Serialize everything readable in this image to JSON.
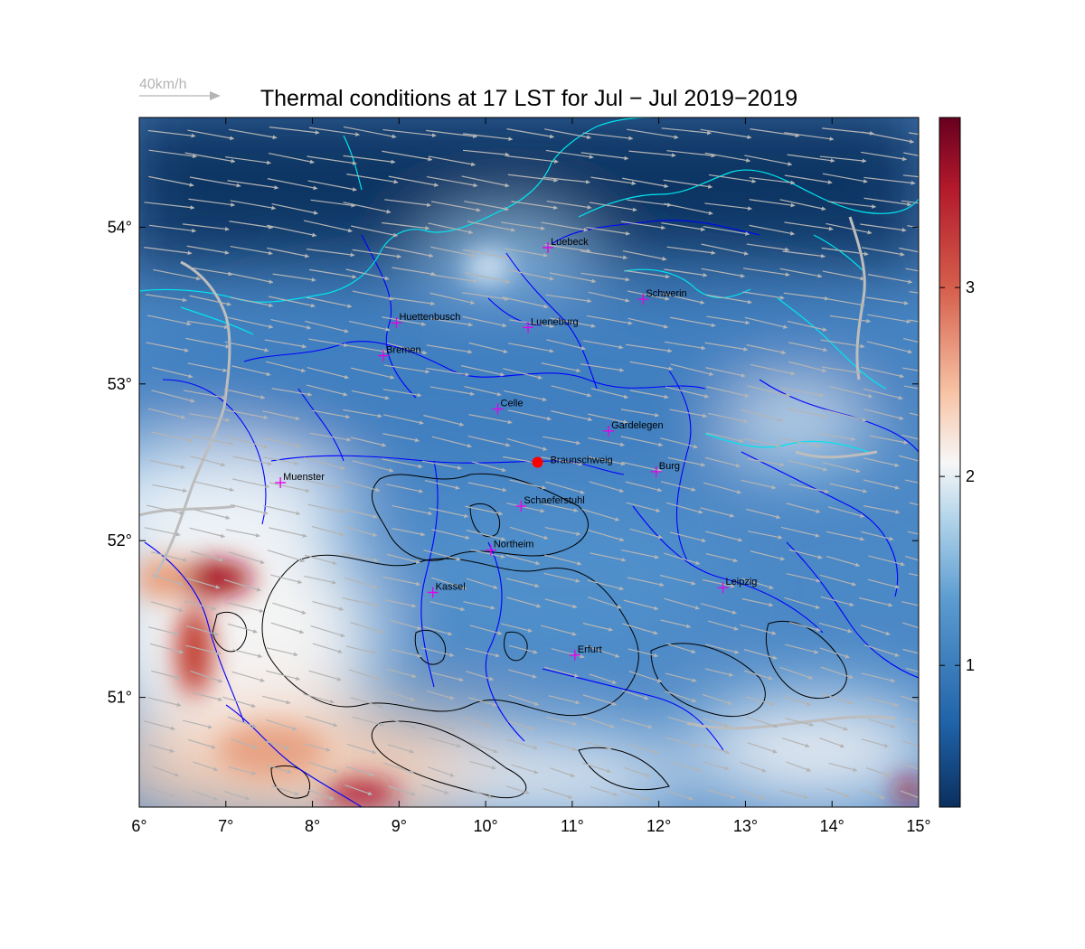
{
  "title": "Thermal conditions at 17 LST for Jul − Jul  2019−2019",
  "wind_reference": {
    "label": "40km/h",
    "color": "#b4b4b4"
  },
  "map": {
    "lon_range": [
      6,
      15
    ],
    "lat_range": [
      50.3,
      54.7
    ],
    "x_ticks": [
      {
        "value": 6,
        "label": "6°"
      },
      {
        "value": 7,
        "label": "7°"
      },
      {
        "value": 8,
        "label": "8°"
      },
      {
        "value": 9,
        "label": "9°"
      },
      {
        "value": 10,
        "label": "10°"
      },
      {
        "value": 11,
        "label": "11°"
      },
      {
        "value": 12,
        "label": "12°"
      },
      {
        "value": 13,
        "label": "13°"
      },
      {
        "value": 14,
        "label": "14°"
      },
      {
        "value": 15,
        "label": "15°"
      }
    ],
    "y_ticks": [
      {
        "value": 51,
        "label": "51°"
      },
      {
        "value": 52,
        "label": "52°"
      },
      {
        "value": 53,
        "label": "53°"
      },
      {
        "value": 54,
        "label": "54°"
      }
    ],
    "colorbar": {
      "range": [
        0.25,
        3.9
      ],
      "ticks": [
        {
          "value": 1,
          "label": "1"
        },
        {
          "value": 2,
          "label": "2"
        },
        {
          "value": 3,
          "label": "3"
        }
      ],
      "colors": [
        "#0b2f5e",
        "#1f62a8",
        "#5b9bd0",
        "#b4d5ea",
        "#f7f7f7",
        "#f7c4a6",
        "#d6604d",
        "#b2182b",
        "#67001f"
      ]
    },
    "cities": [
      {
        "name": "Luebeck",
        "lon": 10.72,
        "lat": 53.87
      },
      {
        "name": "Schwerin",
        "lon": 11.82,
        "lat": 53.54
      },
      {
        "name": "Huettenbusch",
        "lon": 8.97,
        "lat": 53.39
      },
      {
        "name": "Lueneburg",
        "lon": 10.49,
        "lat": 53.36
      },
      {
        "name": "Bremen",
        "lon": 8.82,
        "lat": 53.18
      },
      {
        "name": "Celle",
        "lon": 10.14,
        "lat": 52.84
      },
      {
        "name": "Gardelegen",
        "lon": 11.42,
        "lat": 52.7
      },
      {
        "name": "Burg",
        "lon": 11.97,
        "lat": 52.44
      },
      {
        "name": "Muenster",
        "lon": 7.63,
        "lat": 52.37
      },
      {
        "name": "Schaeferstuhl",
        "lon": 10.41,
        "lat": 52.22
      },
      {
        "name": "Northeim",
        "lon": 10.06,
        "lat": 51.94
      },
      {
        "name": "Kassel",
        "lon": 9.39,
        "lat": 51.67
      },
      {
        "name": "Leipzig",
        "lon": 12.74,
        "lat": 51.7
      },
      {
        "name": "Erfurt",
        "lon": 11.03,
        "lat": 51.27
      }
    ],
    "station": {
      "name": "Braunschweig",
      "lon": 10.6,
      "lat": 52.5,
      "color": "#ff0000"
    },
    "colors": {
      "coast": "#00e5ee",
      "rivers": "#0000ff",
      "terrain": "#000000",
      "borders": "#bdbdbd",
      "markers": "#e600e6",
      "wind": "#b4b4b4"
    }
  }
}
